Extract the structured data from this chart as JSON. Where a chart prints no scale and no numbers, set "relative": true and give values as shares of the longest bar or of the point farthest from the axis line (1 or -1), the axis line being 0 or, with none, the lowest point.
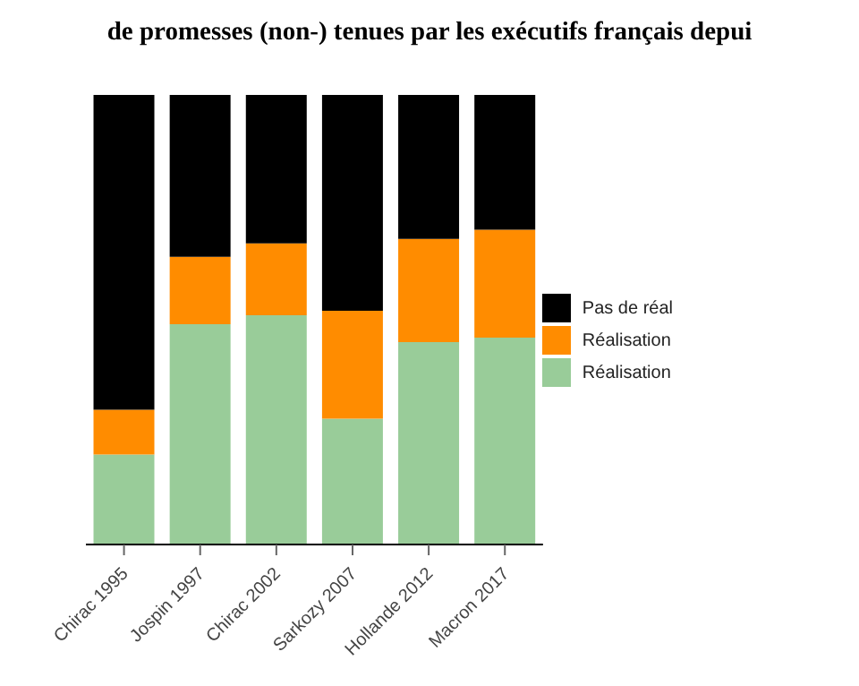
{
  "chart_data": {
    "type": "bar",
    "title": "de promesses (non-) tenues par les exécutifs français depui",
    "categories": [
      "Chirac 1995",
      "Jospin 1997",
      "Chirac 2002",
      "Sarkozy 2007",
      "Hollande 2012",
      "Macron 2017"
    ],
    "stacked": true,
    "relative": true,
    "legend": "right",
    "series": [
      {
        "name": "Réalisation",
        "color": "#99cc99",
        "values": [
          0.2,
          0.49,
          0.51,
          0.28,
          0.45,
          0.46
        ]
      },
      {
        "name": "Réalisation",
        "color": "#ff8c00",
        "values": [
          0.1,
          0.15,
          0.16,
          0.24,
          0.23,
          0.24
        ]
      },
      {
        "name": "Pas de réal",
        "color": "#000000",
        "values": [
          0.7,
          0.36,
          0.33,
          0.48,
          0.32,
          0.3
        ]
      }
    ]
  }
}
